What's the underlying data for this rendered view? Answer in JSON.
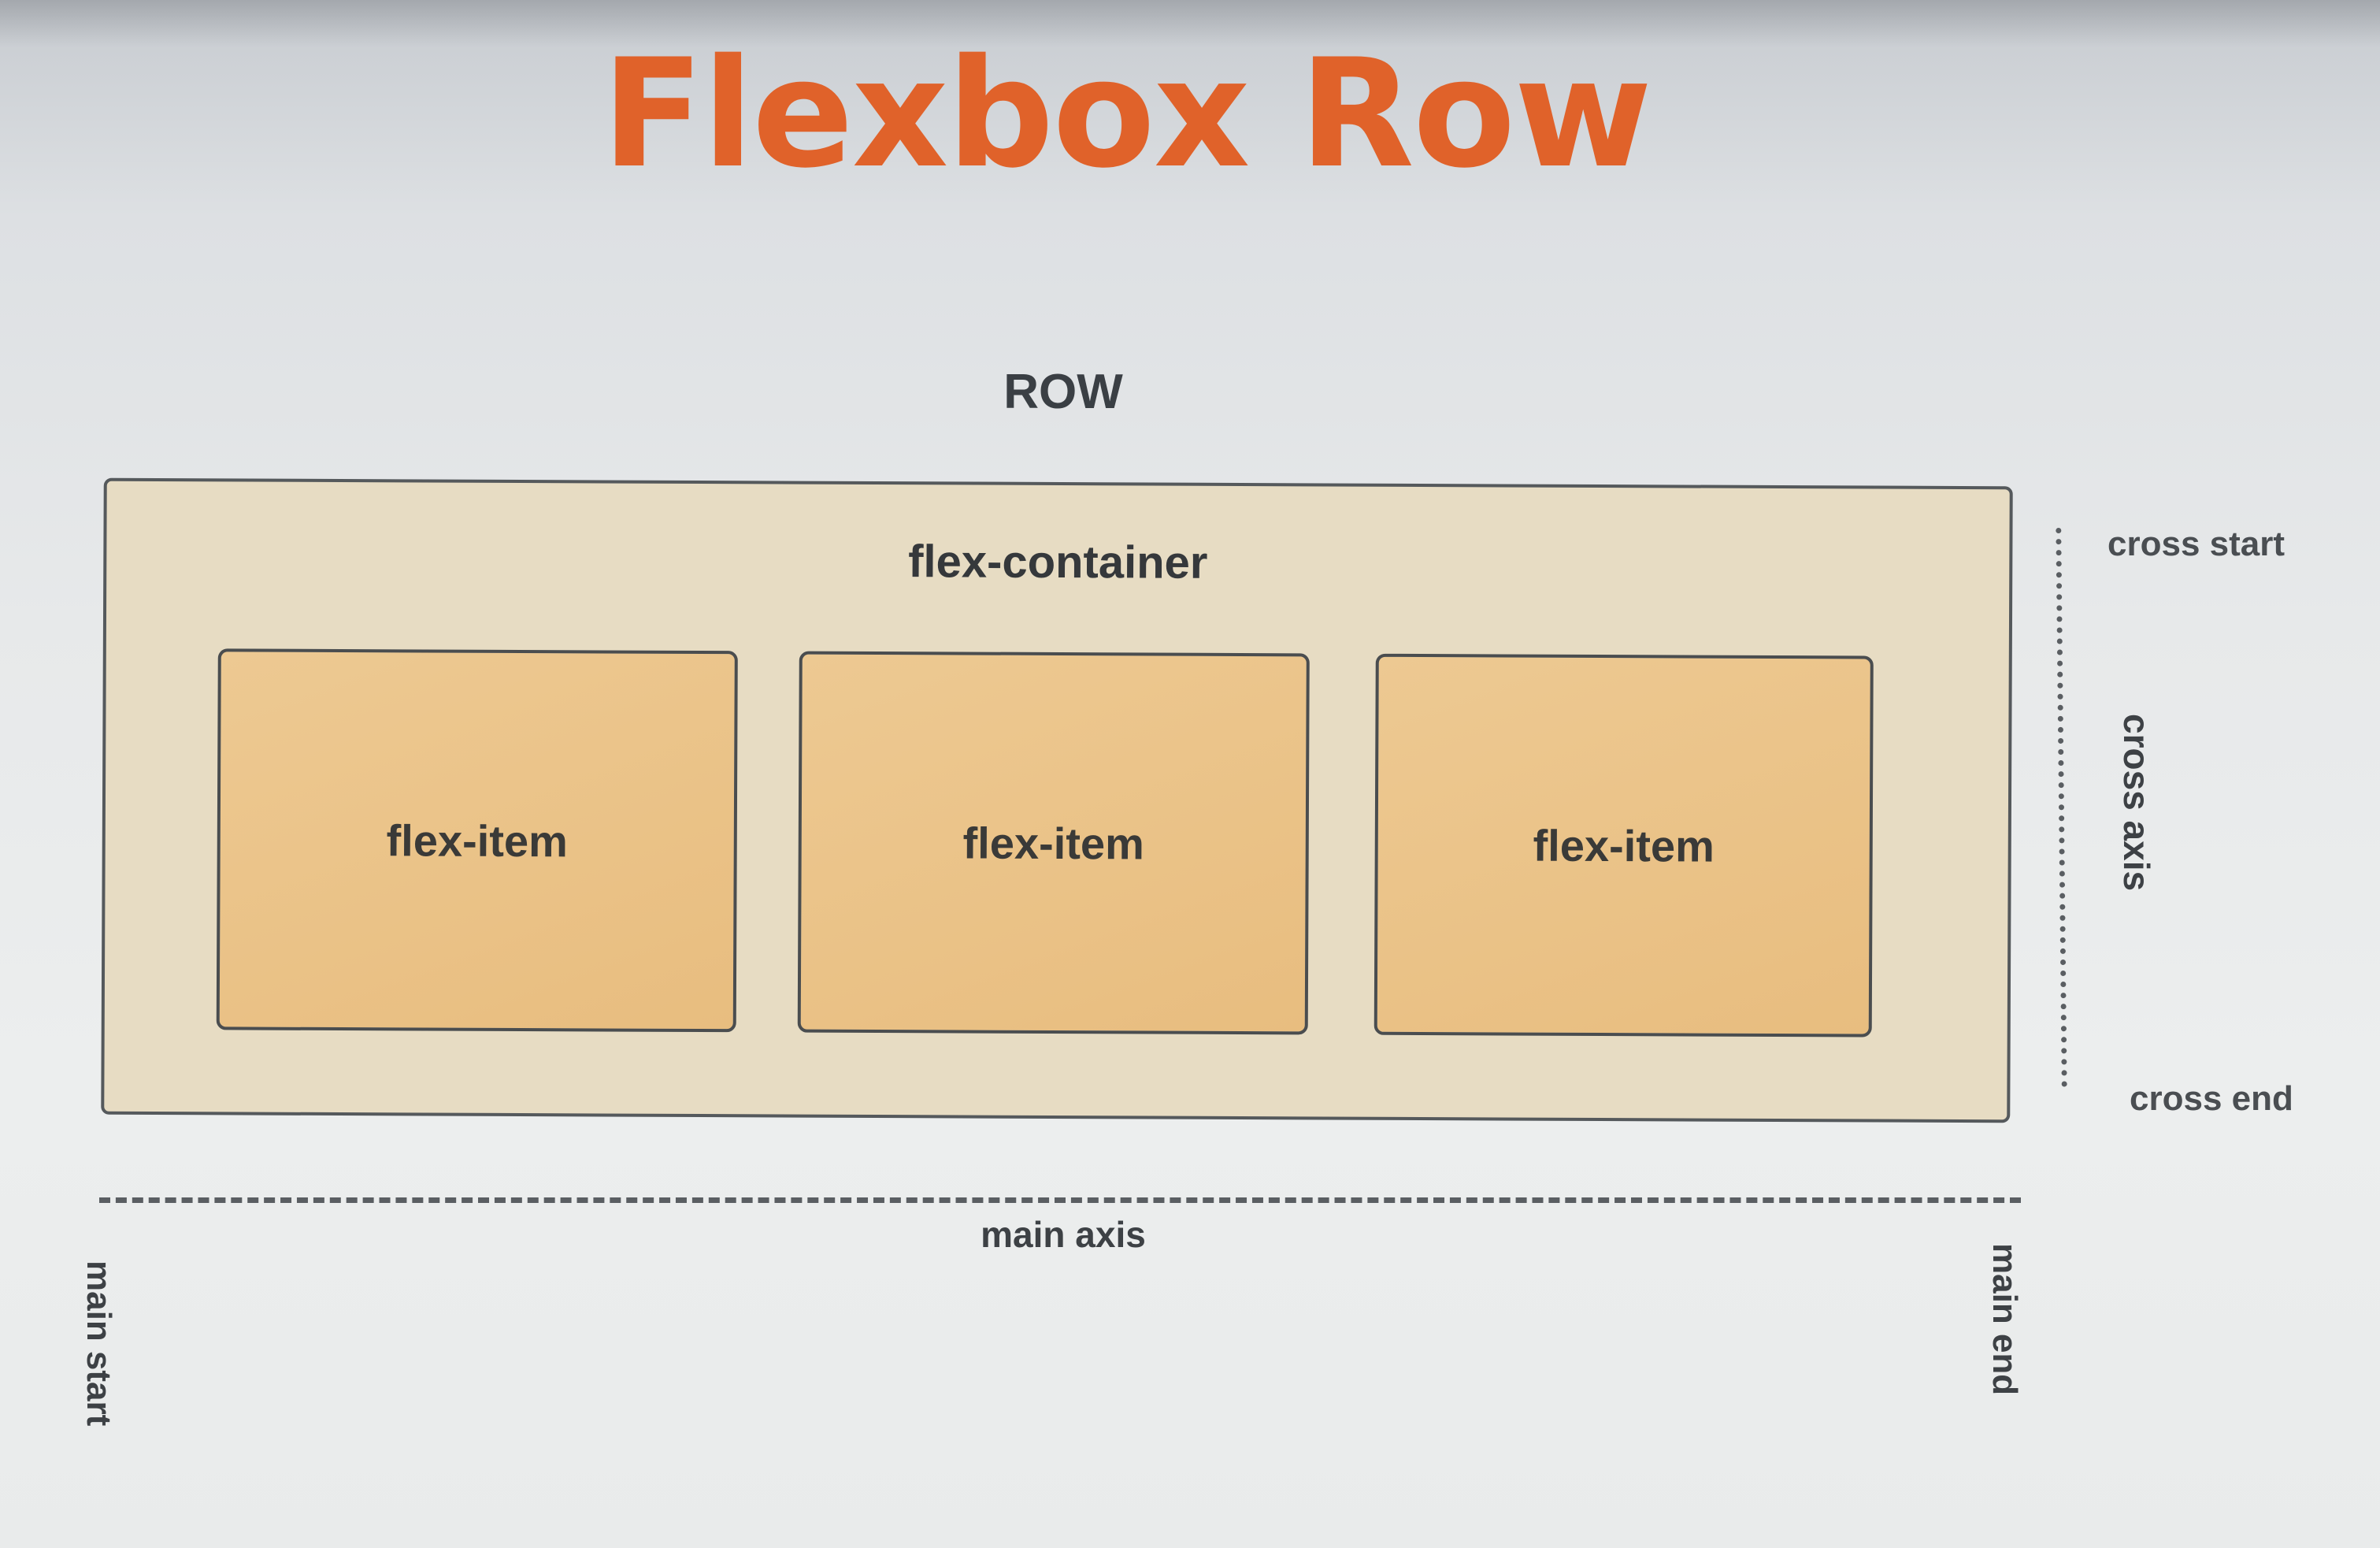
{
  "title": "Flexbox Row",
  "direction_label": "ROW",
  "container": {
    "label": "flex-container",
    "items": [
      "flex-item",
      "flex-item",
      "flex-item"
    ]
  },
  "main_axis": {
    "label": "main axis",
    "start": "main start",
    "end": "main end"
  },
  "cross_axis": {
    "label": "cross axis",
    "start": "cross start",
    "end": "cross end"
  },
  "colors": {
    "title": "#e0622a",
    "container_fill": "#e7dcc3",
    "item_fill": "#e8bd7f",
    "border": "#55595c",
    "text": "#3a3f44"
  }
}
